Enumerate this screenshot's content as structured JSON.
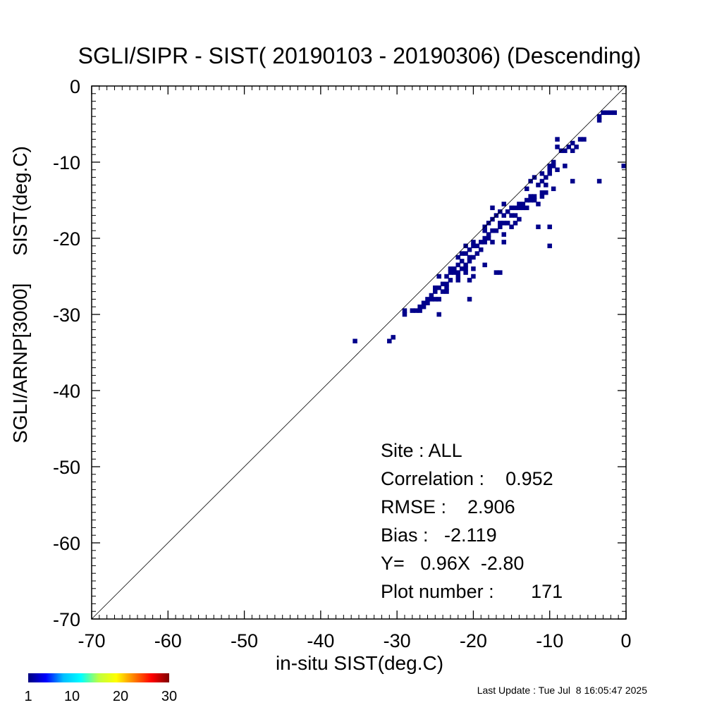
{
  "chart_data": {
    "type": "heatmap",
    "title": "SGLI/SIPR - SIST( 20190103 - 20190306) (Descending)",
    "xlabel": "in-situ SIST(deg.C)",
    "ylabel": "SGLI/ARNP[3000]     SIST(deg.C)",
    "xlim": [
      -70,
      0
    ],
    "ylim": [
      -70,
      0
    ],
    "xticks": [
      "-70",
      "-60",
      "-50",
      "-40",
      "-30",
      "-20",
      "-10",
      "0"
    ],
    "yticks": [
      "0",
      "-10",
      "-20",
      "-30",
      "-40",
      "-50",
      "-60",
      "-70"
    ],
    "xtick_values": [
      -70,
      -60,
      -50,
      -40,
      -30,
      -20,
      -10,
      0
    ],
    "ytick_values": [
      0,
      -10,
      -20,
      -30,
      -40,
      -50,
      -60,
      -70
    ],
    "one_to_one_line": true,
    "bin_size": 0.6,
    "cell_color": "#00008b",
    "cells": [
      [
        -35.5,
        -33.5
      ],
      [
        -31,
        -33.5
      ],
      [
        -30.5,
        -33
      ],
      [
        -29,
        -29.5
      ],
      [
        -29,
        -30
      ],
      [
        -27.5,
        -29.5
      ],
      [
        -27,
        -29.5
      ],
      [
        -26.5,
        -29
      ],
      [
        -26.5,
        -28.5
      ],
      [
        -26,
        -28
      ],
      [
        -26,
        -28.5
      ],
      [
        -25.5,
        -27.5
      ],
      [
        -25.5,
        -28
      ],
      [
        -25,
        -28
      ],
      [
        -24.5,
        -30
      ],
      [
        -24.5,
        -28
      ],
      [
        -25,
        -26.5
      ],
      [
        -24.5,
        -26.5
      ],
      [
        -24,
        -26
      ],
      [
        -24,
        -27
      ],
      [
        -23.5,
        -26.5
      ],
      [
        -23.5,
        -26
      ],
      [
        -23.5,
        -25
      ],
      [
        -23,
        -24.5
      ],
      [
        -23,
        -24
      ],
      [
        -22.5,
        -24
      ],
      [
        -22.5,
        -24.5
      ],
      [
        -22,
        -23.5
      ],
      [
        -22,
        -24.5
      ],
      [
        -21.5,
        -24
      ],
      [
        -21.5,
        -23
      ],
      [
        -21,
        -23.5
      ],
      [
        -21,
        -24.5
      ],
      [
        -20.5,
        -23
      ],
      [
        -21.5,
        -22
      ],
      [
        -21,
        -22
      ],
      [
        -20.5,
        -22.5
      ],
      [
        -20,
        -22.5
      ],
      [
        -22,
        -22.5
      ],
      [
        -22,
        -25
      ],
      [
        -21,
        -21
      ],
      [
        -20.5,
        -21.5
      ],
      [
        -20,
        -21
      ],
      [
        -20,
        -20.5
      ],
      [
        -19.5,
        -21
      ],
      [
        -19,
        -20.5
      ],
      [
        -19,
        -21.5
      ],
      [
        -18.5,
        -20
      ],
      [
        -18.5,
        -20.5
      ],
      [
        -18,
        -19.5
      ],
      [
        -18,
        -20
      ],
      [
        -17.5,
        -19
      ],
      [
        -17.5,
        -20.5
      ],
      [
        -17,
        -19
      ],
      [
        -16.5,
        -18
      ],
      [
        -16.5,
        -18.5
      ],
      [
        -16,
        -18
      ],
      [
        -16,
        -19.5
      ],
      [
        -16,
        -20.5
      ],
      [
        -17,
        -24.5
      ],
      [
        -16.5,
        -24.5
      ],
      [
        -18.5,
        -23.5
      ],
      [
        -20,
        -25
      ],
      [
        -20.5,
        -25.5
      ],
      [
        -18.5,
        -18.5
      ],
      [
        -18,
        -18
      ],
      [
        -17.5,
        -17.5
      ],
      [
        -17,
        -17
      ],
      [
        -16,
        -17
      ],
      [
        -15.5,
        -16.5
      ],
      [
        -15,
        -16
      ],
      [
        -15,
        -17
      ],
      [
        -14.5,
        -16
      ],
      [
        -14,
        -16
      ],
      [
        -14,
        -15.5
      ],
      [
        -13.5,
        -16
      ],
      [
        -13.5,
        -15.5
      ],
      [
        -13,
        -15
      ],
      [
        -13,
        -16
      ],
      [
        -12.5,
        -15
      ],
      [
        -12,
        -15
      ],
      [
        -12,
        -14.5
      ],
      [
        -11.5,
        -15.5
      ],
      [
        -11,
        -14
      ],
      [
        -16,
        -15.5
      ],
      [
        -16.5,
        -16.5
      ],
      [
        -17.5,
        -16
      ],
      [
        -15.5,
        -18
      ],
      [
        -15,
        -18.5
      ],
      [
        -14,
        -17.5
      ],
      [
        -14.5,
        -18
      ],
      [
        -11.5,
        -18.5
      ],
      [
        -10,
        -18.5
      ],
      [
        -10,
        -21
      ],
      [
        -13,
        -13.5
      ],
      [
        -12.5,
        -12.5
      ],
      [
        -12,
        -12
      ],
      [
        -11.5,
        -13
      ],
      [
        -11,
        -12.5
      ],
      [
        -11,
        -14.5
      ],
      [
        -10.5,
        -12
      ],
      [
        -10,
        -11.5
      ],
      [
        -10,
        -11
      ],
      [
        -10,
        -10.5
      ],
      [
        -9.5,
        -10
      ],
      [
        -9,
        -11
      ],
      [
        -11,
        -11.5
      ],
      [
        -10.5,
        -13
      ],
      [
        -10.5,
        -14
      ],
      [
        -9.5,
        -13.5
      ],
      [
        -7,
        -12.5
      ],
      [
        -3.5,
        -12.5
      ],
      [
        -9,
        -8
      ],
      [
        -9,
        -7
      ],
      [
        -8.5,
        -8.5
      ],
      [
        -7.5,
        -8
      ],
      [
        -7,
        -7.5
      ],
      [
        -7,
        -8.5
      ],
      [
        -6.5,
        -8
      ],
      [
        -6,
        -7
      ],
      [
        -5.5,
        -7
      ],
      [
        -8,
        -10.5
      ],
      [
        -3.5,
        -4
      ],
      [
        -3,
        -3.5
      ],
      [
        -2.5,
        -3.5
      ],
      [
        -2,
        -3.5
      ],
      [
        -1.5,
        -3.5
      ],
      [
        -3.5,
        -4.5
      ],
      [
        0,
        -10.5
      ],
      [
        -23.5,
        -27
      ],
      [
        -22,
        -25.5
      ],
      [
        -19.5,
        -22
      ],
      [
        -18.5,
        -19
      ],
      [
        -14.5,
        -17
      ],
      [
        -12.5,
        -14.5
      ],
      [
        -9.5,
        -10.5
      ],
      [
        -8,
        -8.5
      ],
      [
        -27,
        -29
      ],
      [
        -28,
        -29.5
      ],
      [
        -25,
        -27
      ],
      [
        -24.5,
        -25
      ],
      [
        -23,
        -25.5
      ],
      [
        -21,
        -24
      ],
      [
        -20,
        -24
      ],
      [
        -20.5,
        -28
      ]
    ],
    "colorbar": {
      "min": 1,
      "max": 30,
      "tick_labels": [
        "1",
        "10",
        "20",
        "30"
      ],
      "tick_values": [
        1,
        10,
        20,
        30
      ],
      "colors": [
        "#00007f",
        "#0000ff",
        "#00bfff",
        "#00ffff",
        "#bfff40",
        "#ffff00",
        "#ff8000",
        "#ff0000",
        "#7f0000"
      ]
    },
    "stats": [
      "Site : ALL",
      "Correlation :    0.952",
      "RMSE :    2.906",
      "Bias :   -2.119",
      "Y=   0.96X  -2.80",
      "Plot number :       171"
    ]
  },
  "footer": {
    "last_update": "Last Update : Tue Jul  8 16:05:47 2025"
  }
}
